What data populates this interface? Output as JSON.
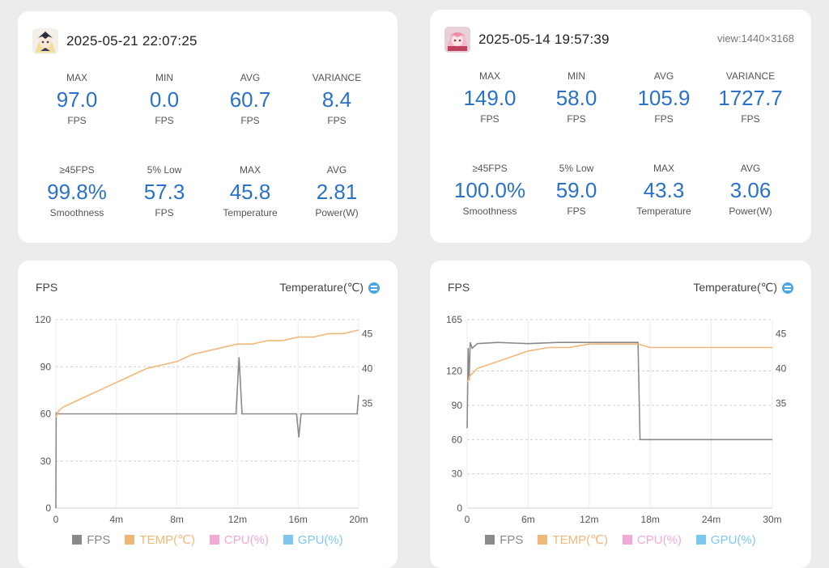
{
  "left": {
    "date": "2025-05-21 22:07:25",
    "stats_row1": [
      {
        "label": "MAX",
        "value": "97.0",
        "unit": "FPS"
      },
      {
        "label": "MIN",
        "value": "0.0",
        "unit": "FPS"
      },
      {
        "label": "AVG",
        "value": "60.7",
        "unit": "FPS"
      },
      {
        "label": "VARIANCE",
        "value": "8.4",
        "unit": "FPS"
      }
    ],
    "stats_row2": [
      {
        "label": "≥45FPS",
        "value": "99.8%",
        "unit": "Smoothness"
      },
      {
        "label": "5% Low",
        "value": "57.3",
        "unit": "FPS"
      },
      {
        "label": "MAX",
        "value": "45.8",
        "unit": "Temperature"
      },
      {
        "label": "AVG",
        "value": "2.81",
        "unit": "Power(W)"
      }
    ]
  },
  "right": {
    "date": "2025-05-14 19:57:39",
    "view": "view:1440×3168",
    "stats_row1": [
      {
        "label": "MAX",
        "value": "149.0",
        "unit": "FPS"
      },
      {
        "label": "MIN",
        "value": "58.0",
        "unit": "FPS"
      },
      {
        "label": "AVG",
        "value": "105.9",
        "unit": "FPS"
      },
      {
        "label": "VARIANCE",
        "value": "1727.7",
        "unit": "FPS"
      }
    ],
    "stats_row2": [
      {
        "label": "≥45FPS",
        "value": "100.0%",
        "unit": "Smoothness"
      },
      {
        "label": "5% Low",
        "value": "59.0",
        "unit": "FPS"
      },
      {
        "label": "MAX",
        "value": "43.3",
        "unit": "Temperature"
      },
      {
        "label": "AVG",
        "value": "3.06",
        "unit": "Power(W)"
      }
    ]
  },
  "chart_labels": {
    "fps_title": "FPS",
    "temp_title": "Temperature(℃)",
    "legend": [
      "FPS",
      "TEMP(℃)",
      "CPU(%)",
      "GPU(%)"
    ]
  },
  "colors": {
    "fps": "#8a8a8a",
    "temp": "#f0b878",
    "cpu": "#f4a8d8",
    "gpu": "#7ec8f0",
    "value_blue": "#2a72c9"
  },
  "chart_data": [
    {
      "type": "line",
      "y_ticks": [
        "120",
        "90",
        "60",
        "30",
        "0"
      ],
      "ylim": [
        0,
        120
      ],
      "x_ticks": [
        "0",
        "4m",
        "8m",
        "12m",
        "16m",
        "20m"
      ],
      "xlim": [
        0,
        20
      ],
      "y2_ticks": [
        "45",
        "40",
        "35"
      ],
      "series": [
        {
          "name": "FPS",
          "x": [
            0,
            0.02,
            0.05,
            0.5,
            1,
            2,
            4,
            6,
            8,
            10,
            11.9,
            12.1,
            12.3,
            14,
            15.9,
            16.05,
            16.2,
            18,
            19.9,
            20
          ],
          "y": [
            0,
            61,
            60,
            60,
            60,
            60,
            60,
            60,
            60,
            60,
            60,
            96,
            60,
            60,
            60,
            45,
            60,
            60,
            60,
            72
          ]
        },
        {
          "name": "TEMP(℃)",
          "x": [
            0,
            0.2,
            0.5,
            1,
            2,
            3,
            4,
            5,
            6,
            7,
            8,
            9,
            10,
            11,
            12,
            13,
            14,
            15,
            16,
            17,
            18,
            19,
            20
          ],
          "y": [
            33,
            34,
            34.5,
            35,
            36,
            37,
            38,
            39,
            40,
            40.5,
            41,
            42,
            42.5,
            43,
            43.5,
            43.5,
            44,
            44,
            44.5,
            44.5,
            45,
            45,
            45.5
          ]
        }
      ]
    },
    {
      "type": "line",
      "y_ticks": [
        "165",
        "120",
        "90",
        "60",
        "30",
        "0"
      ],
      "ylim": [
        0,
        165
      ],
      "x_ticks": [
        "0",
        "6m",
        "12m",
        "18m",
        "24m",
        "30m"
      ],
      "xlim": [
        0,
        30
      ],
      "y2_ticks": [
        "45",
        "40",
        "35"
      ],
      "series": [
        {
          "name": "FPS",
          "x": [
            0,
            0.1,
            0.2,
            0.3,
            0.5,
            1,
            3,
            6,
            9,
            12,
            15,
            16.8,
            16.9,
            17,
            20,
            24,
            27,
            30
          ],
          "y": [
            70,
            140,
            112,
            145,
            140,
            144,
            145,
            144,
            145,
            145,
            145,
            145,
            100,
            60,
            60,
            60,
            60,
            60
          ]
        },
        {
          "name": "TEMP(℃)",
          "x": [
            0,
            0.3,
            1,
            2,
            3,
            4,
            5,
            6,
            8,
            10,
            12,
            14,
            16.8,
            18,
            22,
            26,
            30
          ],
          "y": [
            38,
            39,
            40,
            40.5,
            41,
            41.5,
            42,
            42.5,
            43,
            43,
            43.5,
            43.5,
            43.5,
            43,
            43,
            43,
            43
          ]
        }
      ]
    }
  ]
}
